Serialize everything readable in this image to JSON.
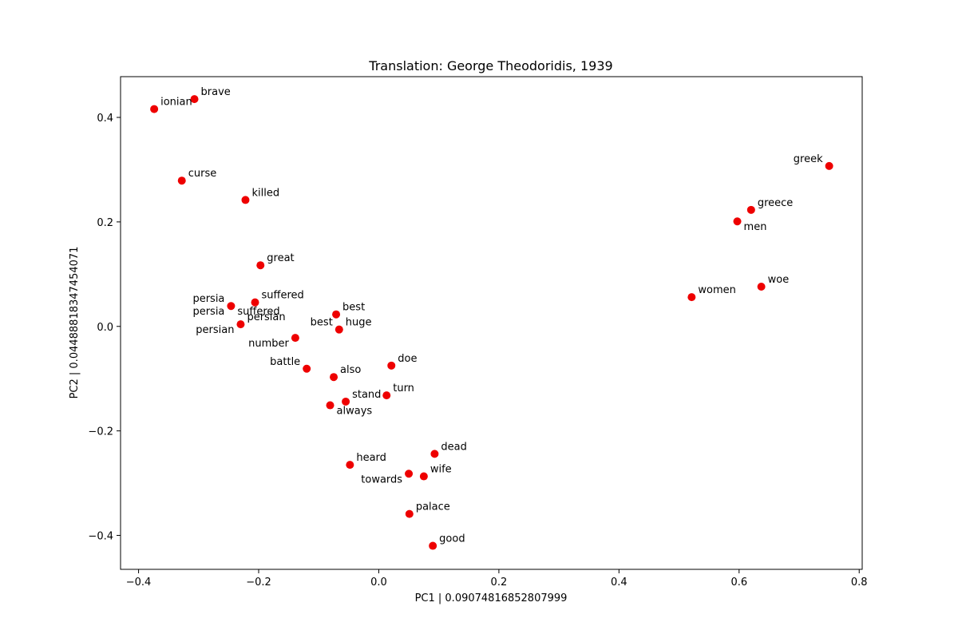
{
  "chart_data": {
    "type": "scatter",
    "title": "Translation: George Theodoridis, 1939",
    "xlabel": "PC1 | 0.09074816852807999",
    "ylabel": "PC2 | 0.044888183474540​71",
    "xlim": [
      -0.43,
      0.805
    ],
    "ylim": [
      -0.465,
      0.478
    ],
    "x_ticks": [
      -0.4,
      -0.2,
      0.0,
      0.2,
      0.4,
      0.6,
      0.8
    ],
    "x_tick_labels": [
      "−0.4",
      "−0.2",
      "0.0",
      "0.2",
      "0.4",
      "0.6",
      "0.8"
    ],
    "y_ticks": [
      -0.4,
      -0.2,
      0.0,
      0.2,
      0.4
    ],
    "y_tick_labels": [
      "−0.4",
      "−0.2",
      "0.0",
      "0.2",
      "0.4"
    ],
    "marker_color": "#ee0000",
    "grid": false,
    "points": [
      {
        "label": "brave",
        "x": -0.307,
        "y": 0.435,
        "pos": "right"
      },
      {
        "label": "ionian",
        "x": -0.374,
        "y": 0.416,
        "pos": "right"
      },
      {
        "label": "curse",
        "x": -0.328,
        "y": 0.279,
        "pos": "right"
      },
      {
        "label": "killed",
        "x": -0.222,
        "y": 0.242,
        "pos": "right"
      },
      {
        "label": "great",
        "x": -0.197,
        "y": 0.117,
        "pos": "right"
      },
      {
        "label": "suffered",
        "x": -0.206,
        "y": 0.046,
        "pos": "right"
      },
      {
        "label": "persia",
        "x": -0.246,
        "y": 0.039,
        "pos": "left"
      },
      {
        "label": "persia",
        "x": -0.246,
        "y": 0.039,
        "pos": "below-left"
      },
      {
        "label": "suffered",
        "x": -0.246,
        "y": 0.039,
        "pos": "below-right"
      },
      {
        "label": "persian",
        "x": -0.23,
        "y": 0.004,
        "pos": "right"
      },
      {
        "label": "persian",
        "x": -0.23,
        "y": 0.004,
        "pos": "below-left"
      },
      {
        "label": "number",
        "x": -0.139,
        "y": -0.022,
        "pos": "below-left"
      },
      {
        "label": "best",
        "x": -0.071,
        "y": 0.023,
        "pos": "right"
      },
      {
        "label": "best",
        "x": -0.066,
        "y": -0.006,
        "pos": "left"
      },
      {
        "label": "huge",
        "x": -0.066,
        "y": -0.006,
        "pos": "right"
      },
      {
        "label": "battle",
        "x": -0.12,
        "y": -0.081,
        "pos": "left"
      },
      {
        "label": "also",
        "x": -0.075,
        "y": -0.097,
        "pos": "right"
      },
      {
        "label": "doe",
        "x": 0.021,
        "y": -0.075,
        "pos": "right"
      },
      {
        "label": "turn",
        "x": 0.013,
        "y": -0.132,
        "pos": "right"
      },
      {
        "label": "stand",
        "x": -0.055,
        "y": -0.144,
        "pos": "right"
      },
      {
        "label": "always",
        "x": -0.081,
        "y": -0.151,
        "pos": "below-right"
      },
      {
        "label": "dead",
        "x": 0.093,
        "y": -0.244,
        "pos": "right"
      },
      {
        "label": "heard",
        "x": -0.048,
        "y": -0.265,
        "pos": "right"
      },
      {
        "label": "wife",
        "x": 0.075,
        "y": -0.287,
        "pos": "right"
      },
      {
        "label": "towards",
        "x": 0.05,
        "y": -0.282,
        "pos": "below-left"
      },
      {
        "label": "palace",
        "x": 0.051,
        "y": -0.359,
        "pos": "right"
      },
      {
        "label": "good",
        "x": 0.09,
        "y": -0.42,
        "pos": "right"
      },
      {
        "label": "greek",
        "x": 0.75,
        "y": 0.307,
        "pos": "left"
      },
      {
        "label": "greece",
        "x": 0.62,
        "y": 0.223,
        "pos": "right"
      },
      {
        "label": "men",
        "x": 0.597,
        "y": 0.201,
        "pos": "below-right"
      },
      {
        "label": "woe",
        "x": 0.637,
        "y": 0.076,
        "pos": "right"
      },
      {
        "label": "women",
        "x": 0.521,
        "y": 0.056,
        "pos": "right"
      }
    ]
  }
}
